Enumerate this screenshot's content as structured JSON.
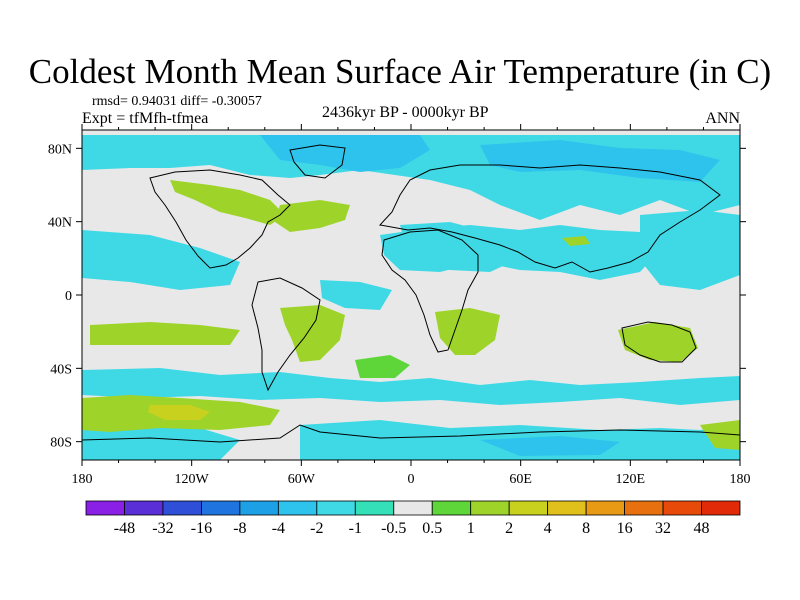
{
  "title": "Coldest Month Mean Surface Air Temperature (in C)",
  "stats": "rmsd= 0.94031 diff= -0.30057",
  "experiment": "Expt = tfMfh-tfmea",
  "period": "2436kyr BP - 0000kyr BP",
  "season": "ANN",
  "map": {
    "projection": "cylindrical equidistant",
    "lon_range": [
      -180,
      180
    ],
    "lat_range": [
      -90,
      90
    ],
    "x_ticks": [
      "180",
      "120W",
      "60W",
      "0",
      "60E",
      "120E",
      "180"
    ],
    "y_ticks": [
      "80N",
      "40N",
      "0",
      "40S",
      "80S"
    ],
    "background_color": "#e8e8e8",
    "coastline_color": "#000000"
  },
  "colorbar": {
    "colors": [
      "#8a1fe6",
      "#5a2fd8",
      "#2f4fd8",
      "#1f74e0",
      "#1ea0e6",
      "#2ec3ec",
      "#3fd9e6",
      "#33e0b8",
      "#e8e8e8",
      "#5ed63a",
      "#9ed32a",
      "#c8d21e",
      "#e0c01a",
      "#e89a14",
      "#e8700e",
      "#e84a0a",
      "#e02a08"
    ],
    "labels": [
      "-48",
      "-32",
      "-16",
      "-8",
      "-4",
      "-2",
      "-1",
      "-0.5",
      "0.5",
      "1",
      "2",
      "4",
      "8",
      "16",
      "32",
      "48"
    ]
  }
}
